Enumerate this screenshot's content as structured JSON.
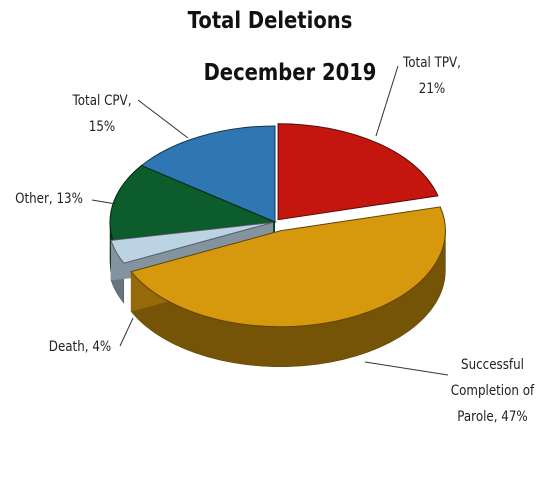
{
  "chart_data": {
    "type": "pie",
    "title": "Total Deletions",
    "subtitle": "December 2019",
    "categories": [
      "Total TPV,",
      "Successful Completion of Parole,",
      "Death,",
      "Other,",
      "Total CPV,"
    ],
    "values": [
      21,
      47,
      4,
      13,
      15
    ],
    "value_labels": [
      "21%",
      "47%",
      "4%",
      "13%",
      "15%"
    ],
    "colors": [
      "#c4160e",
      "#d6980c",
      "#bcd3e3",
      "#0c5c2c",
      "#2f77b2"
    ]
  }
}
